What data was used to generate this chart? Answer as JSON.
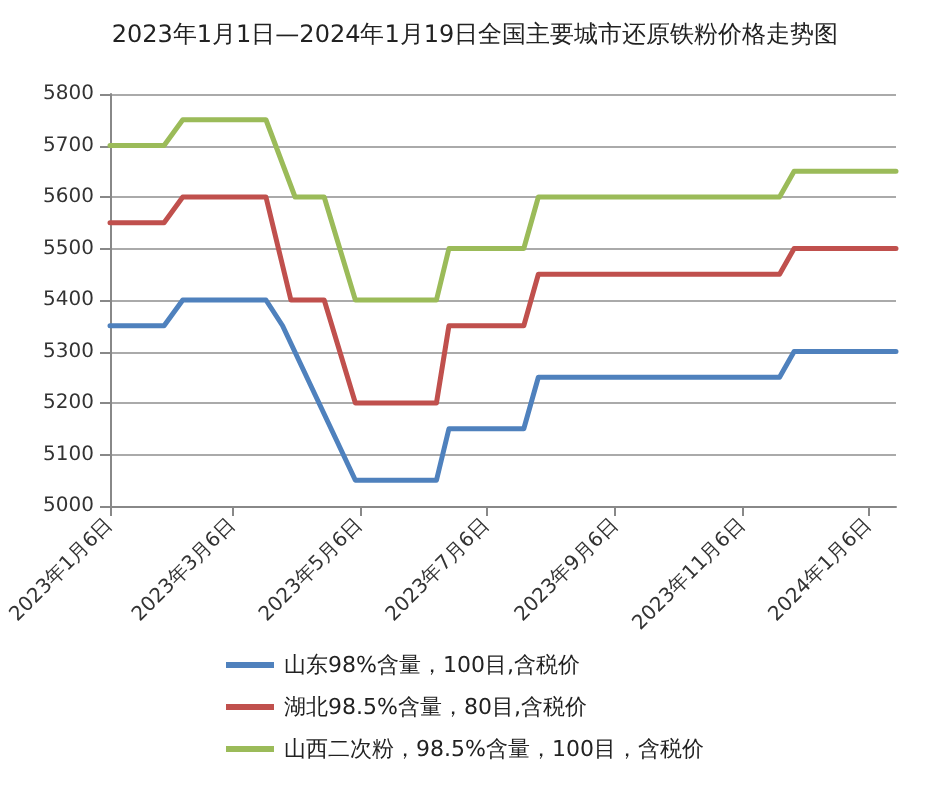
{
  "chart_data": {
    "type": "line",
    "title": "2023年1月1日—2024年1月19日全国主要城市还原铁粉价格走势图",
    "series": [
      {
        "name": "山东98%含量，100目,含税价",
        "color": "#4f81bd",
        "x": [
          "2023-01-06",
          "2023-02-01",
          "2023-02-10",
          "2023-03-22",
          "2023-03-30",
          "2023-05-04",
          "2023-06-12",
          "2023-06-18",
          "2023-07-24",
          "2023-07-31",
          "2023-11-24",
          "2023-12-01",
          "2024-01-19"
        ],
        "values": [
          5350,
          5350,
          5400,
          5400,
          5350,
          5050,
          5050,
          5150,
          5150,
          5250,
          5250,
          5300,
          5300
        ]
      },
      {
        "name": "湖北98.5%含量，80目,含税价",
        "color": "#c0504d",
        "x": [
          "2023-01-06",
          "2023-02-01",
          "2023-02-10",
          "2023-03-22",
          "2023-04-03",
          "2023-04-19",
          "2023-05-04",
          "2023-06-12",
          "2023-06-18",
          "2023-07-24",
          "2023-07-31",
          "2023-11-24",
          "2023-12-01",
          "2024-01-19"
        ],
        "values": [
          5550,
          5550,
          5600,
          5600,
          5400,
          5400,
          5200,
          5200,
          5350,
          5350,
          5450,
          5450,
          5500,
          5500
        ]
      },
      {
        "name": "山西二次粉，98.5%含量，100目，含税价",
        "color": "#9bbb59",
        "x": [
          "2023-01-06",
          "2023-02-01",
          "2023-02-10",
          "2023-03-22",
          "2023-04-05",
          "2023-04-19",
          "2023-05-04",
          "2023-06-12",
          "2023-06-18",
          "2023-07-24",
          "2023-07-31",
          "2023-11-24",
          "2023-12-01",
          "2024-01-19"
        ],
        "values": [
          5700,
          5700,
          5750,
          5750,
          5600,
          5600,
          5400,
          5400,
          5500,
          5500,
          5600,
          5600,
          5650,
          5650
        ]
      }
    ],
    "xlim": [
      "2023-01-06",
      "2024-01-19"
    ],
    "xticks": [
      {
        "value": "2023-01-06",
        "label": "2023年1月6日"
      },
      {
        "value": "2023-03-06",
        "label": "2023年3月6日"
      },
      {
        "value": "2023-05-06",
        "label": "2023年5月6日"
      },
      {
        "value": "2023-07-06",
        "label": "2023年7月6日"
      },
      {
        "value": "2023-09-06",
        "label": "2023年9月6日"
      },
      {
        "value": "2023-11-06",
        "label": "2023年11月6日"
      },
      {
        "value": "2024-01-06",
        "label": "2024年1月6日"
      }
    ],
    "ylim": [
      5000,
      5800
    ],
    "yticks": [
      5000,
      5100,
      5200,
      5300,
      5400,
      5500,
      5600,
      5700,
      5800
    ],
    "grid": "y",
    "legend": "bottom",
    "marker": "none",
    "line_style": "solid"
  }
}
